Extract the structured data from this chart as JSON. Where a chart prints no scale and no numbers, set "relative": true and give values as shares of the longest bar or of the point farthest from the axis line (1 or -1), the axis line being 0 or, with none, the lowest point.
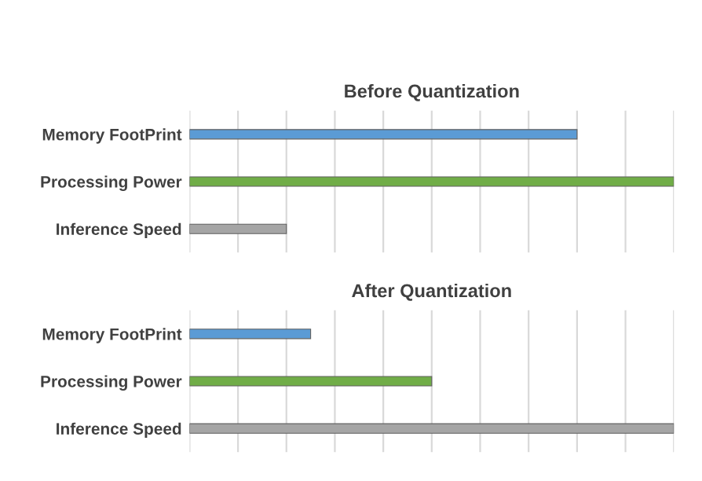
{
  "chart_data": [
    {
      "type": "bar",
      "orientation": "horizontal",
      "relative": true,
      "title": "Before Quantization",
      "categories": [
        "Memory FootPrint",
        "Processing Power",
        "Inference Speed"
      ],
      "values": [
        0.8,
        1,
        0.2
      ],
      "colors": [
        "#5b9bd5",
        "#70ad47",
        "#a5a5a5"
      ],
      "grid": "x"
    },
    {
      "type": "bar",
      "orientation": "horizontal",
      "relative": true,
      "title": "After Quantization",
      "categories": [
        "Memory FootPrint",
        "Processing Power",
        "Inference Speed"
      ],
      "values": [
        0.25,
        0.5,
        1
      ],
      "colors": [
        "#5b9bd5",
        "#70ad47",
        "#a5a5a5"
      ],
      "grid": "x"
    }
  ]
}
